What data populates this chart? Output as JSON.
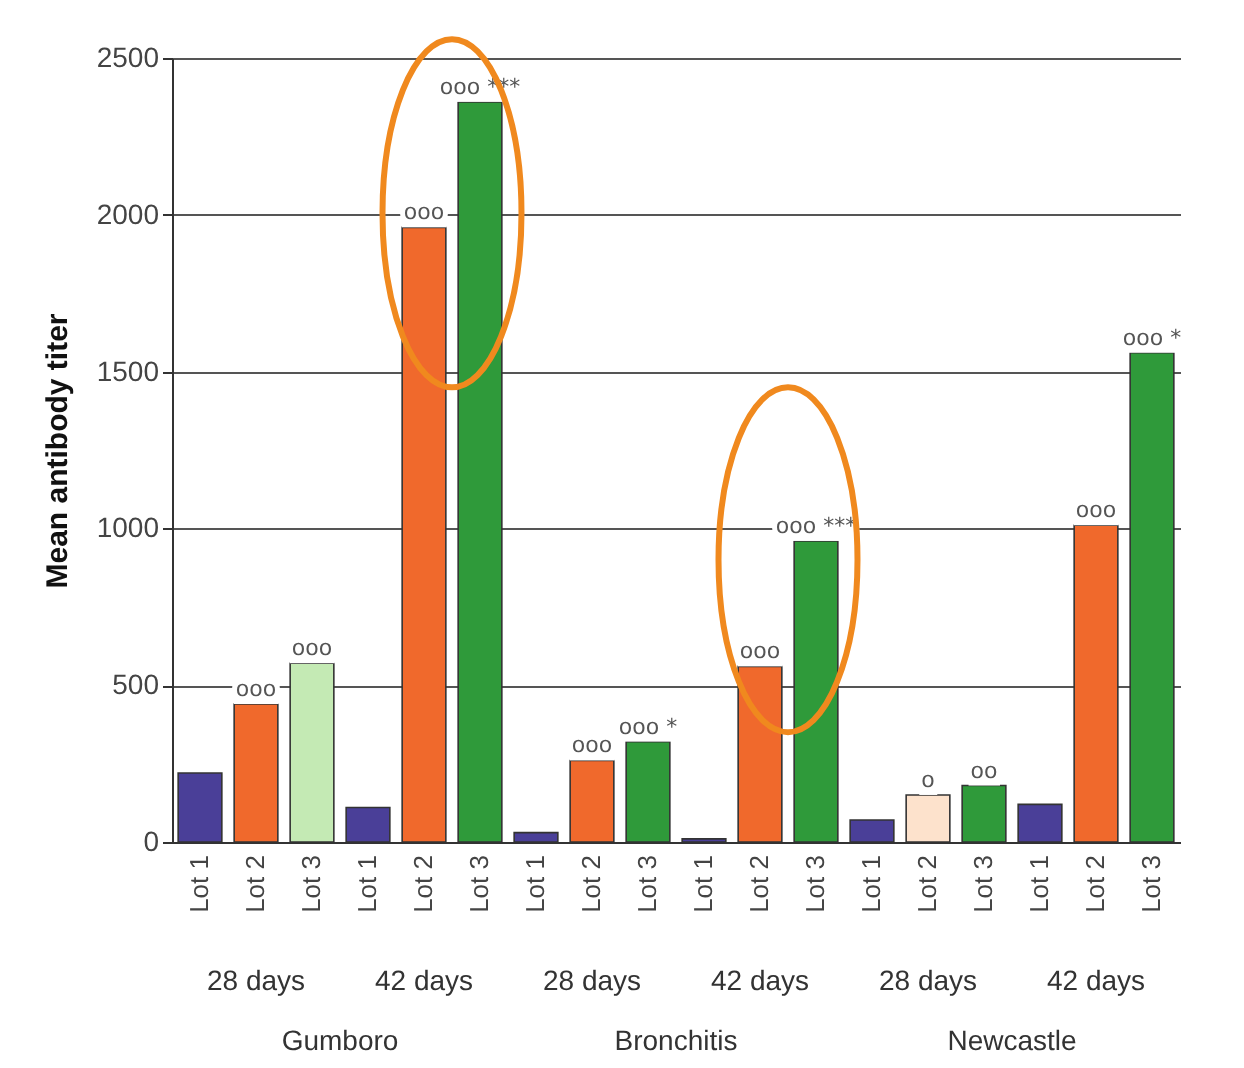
{
  "chart_data": {
    "type": "bar",
    "ylabel": "Mean antibody titer",
    "categories": [
      "Lot 1",
      "Lot 2",
      "Lot 3",
      "Lot 1",
      "Lot 2",
      "Lot 3",
      "Lot 1",
      "Lot 2",
      "Lot 3",
      "Lot 1",
      "Lot 2",
      "Lot 3",
      "Lot 1",
      "Lot 2",
      "Lot 3",
      "Lot 1",
      "Lot 2",
      "Lot 3"
    ],
    "values": [
      220,
      440,
      570,
      110,
      1960,
      2360,
      30,
      260,
      320,
      10,
      560,
      960,
      70,
      150,
      180,
      120,
      1010,
      1560
    ],
    "colors": [
      "#4a3f98",
      "#f0692c",
      "#c4eab4",
      "#4a3f98",
      "#f0692c",
      "#2f9a3a",
      "#4a3f98",
      "#f0692c",
      "#2f9a3a",
      "#4a3f98",
      "#f0692c",
      "#2f9a3a",
      "#4a3f98",
      "#fde2cc",
      "#2f9a3a",
      "#4a3f98",
      "#f0692c",
      "#2f9a3a"
    ],
    "value_labels": [
      null,
      "ooo",
      "ooo",
      null,
      "ooo",
      "ooo ***",
      null,
      "ooo",
      "ooo *",
      null,
      "ooo",
      "ooo ***",
      null,
      "o",
      "oo",
      null,
      "ooo",
      "ooo *"
    ],
    "annotations": [
      "28 days",
      "42 days",
      "28 days",
      "42 days",
      "28 days",
      "42 days",
      "Gumboro",
      "Bronchitis",
      "Newcastle"
    ],
    "ylim": [
      0,
      2500
    ],
    "yticks": [
      0,
      500,
      1000,
      1500,
      2000,
      2500
    ],
    "grid": "y"
  }
}
